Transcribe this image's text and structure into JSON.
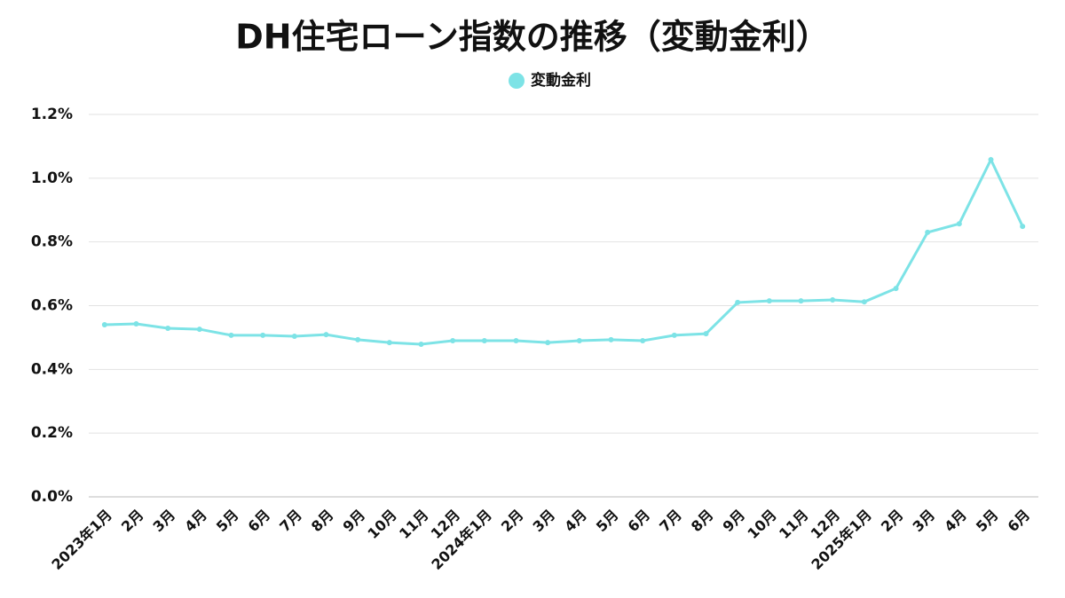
{
  "chart_data": {
    "type": "line",
    "title": "DH住宅ローン指数の推移（変動金利）",
    "categories": [
      "2023年1月",
      "2月",
      "3月",
      "4月",
      "5月",
      "6月",
      "7月",
      "8月",
      "9月",
      "10月",
      "11月",
      "12月",
      "2024年1月",
      "2月",
      "3月",
      "4月",
      "5月",
      "6月",
      "7月",
      "8月",
      "9月",
      "10月",
      "11月",
      "12月",
      "2025年1月",
      "2月",
      "3月",
      "4月",
      "5月",
      "6月"
    ],
    "series": [
      {
        "name": "変動金利",
        "color": "#7de3e6",
        "values": [
          0.54,
          0.543,
          0.529,
          0.526,
          0.507,
          0.507,
          0.504,
          0.509,
          0.493,
          0.484,
          0.479,
          0.49,
          0.49,
          0.49,
          0.484,
          0.49,
          0.493,
          0.49,
          0.507,
          0.512,
          0.61,
          0.615,
          0.615,
          0.618,
          0.612,
          0.654,
          0.83,
          0.857,
          1.058,
          0.849
        ]
      }
    ],
    "ylim": [
      0,
      1.2
    ],
    "yticks": [
      {
        "value": 0,
        "label": "0.0%"
      },
      {
        "value": 0.2,
        "label": "0.2%"
      },
      {
        "value": 0.4,
        "label": "0.4%"
      },
      {
        "value": 0.6,
        "label": "0.6%"
      },
      {
        "value": 0.8,
        "label": "0.8%"
      },
      {
        "value": 1.0,
        "label": "1.0%"
      },
      {
        "value": 1.2,
        "label": "1.2%"
      }
    ],
    "grid": true,
    "legend": "top"
  }
}
